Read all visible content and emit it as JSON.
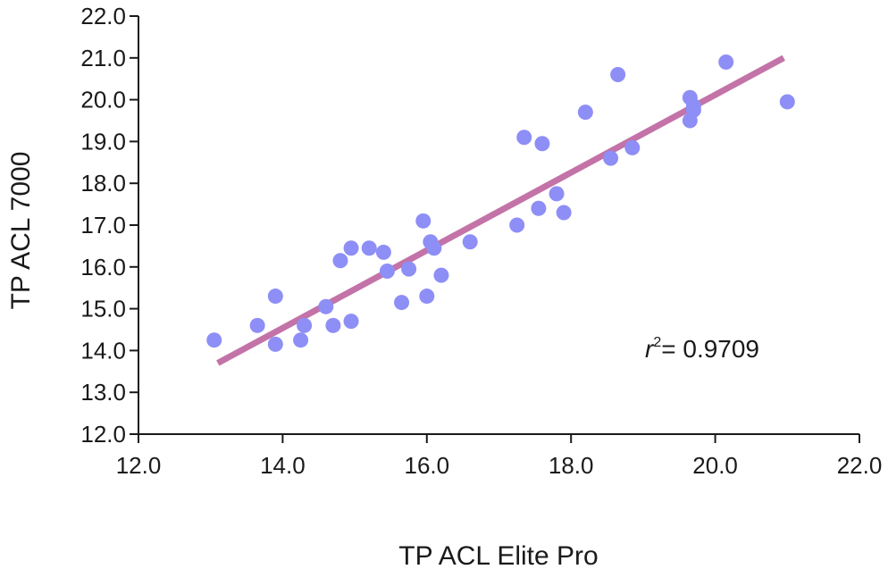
{
  "chart_data": {
    "type": "scatter",
    "xlabel": "TP ACL Elite Pro",
    "ylabel": "TP ACL 7000",
    "xlim": [
      12.0,
      22.0
    ],
    "ylim": [
      12.0,
      22.0
    ],
    "x_ticks": [
      "12.0",
      "14.0",
      "16.0",
      "18.0",
      "20.0",
      "22.0"
    ],
    "y_ticks": [
      "12.0",
      "13.0",
      "14.0",
      "15.0",
      "16.0",
      "17.0",
      "18.0",
      "19.0",
      "20.0",
      "21.0",
      "22.0"
    ],
    "grid": false,
    "points": [
      [
        13.05,
        14.25
      ],
      [
        13.65,
        14.6
      ],
      [
        13.9,
        14.15
      ],
      [
        13.9,
        15.3
      ],
      [
        14.25,
        14.25
      ],
      [
        14.3,
        14.6
      ],
      [
        14.6,
        15.05
      ],
      [
        14.7,
        14.6
      ],
      [
        14.8,
        16.15
      ],
      [
        14.95,
        16.45
      ],
      [
        14.95,
        14.7
      ],
      [
        15.2,
        16.45
      ],
      [
        15.4,
        16.35
      ],
      [
        15.45,
        15.9
      ],
      [
        15.65,
        15.15
      ],
      [
        15.75,
        15.95
      ],
      [
        15.95,
        17.1
      ],
      [
        16.0,
        15.3
      ],
      [
        16.05,
        16.6
      ],
      [
        16.1,
        16.45
      ],
      [
        16.2,
        15.8
      ],
      [
        16.6,
        16.6
      ],
      [
        17.25,
        17.0
      ],
      [
        17.35,
        19.1
      ],
      [
        17.55,
        17.4
      ],
      [
        17.6,
        18.95
      ],
      [
        17.8,
        17.75
      ],
      [
        17.9,
        17.3
      ],
      [
        18.2,
        19.7
      ],
      [
        18.55,
        18.6
      ],
      [
        18.65,
        20.6
      ],
      [
        18.85,
        18.85
      ],
      [
        19.65,
        19.5
      ],
      [
        19.65,
        20.05
      ],
      [
        19.7,
        19.75
      ],
      [
        19.7,
        19.85
      ],
      [
        20.15,
        20.9
      ],
      [
        21.0,
        19.95
      ]
    ],
    "fit_line": {
      "x": [
        13.1,
        20.95
      ],
      "y": [
        13.7,
        21.0
      ]
    },
    "point_color": "#8e8ef7",
    "line_color": "#c373a8",
    "annotation": {
      "r_symbol": "r",
      "superscript": "2",
      "text": "= 0.9709"
    }
  }
}
